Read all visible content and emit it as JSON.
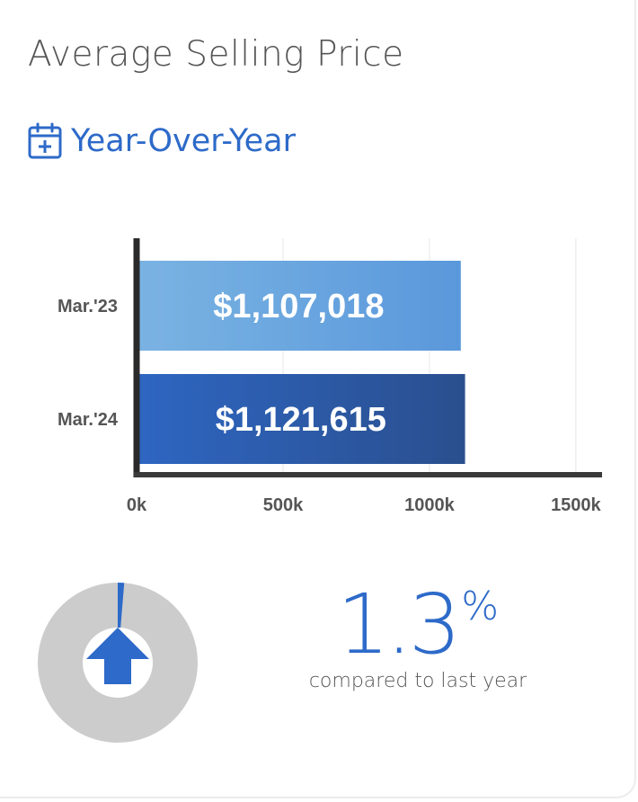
{
  "header": {
    "title": "Average Selling Price",
    "subtitle": "Year-Over-Year",
    "subtitle_icon": "calendar-plus-icon"
  },
  "chart_data": {
    "type": "bar",
    "orientation": "horizontal",
    "categories": [
      "Mar.'23",
      "Mar.'24"
    ],
    "values": [
      1107018,
      1121615
    ],
    "value_labels": [
      "$1,107,018",
      "$1,121,615"
    ],
    "x_ticks": [
      "0k",
      "500k",
      "1000k",
      "1500k"
    ],
    "x_tick_values": [
      0,
      500000,
      1000000,
      1500000
    ],
    "xlim": [
      0,
      1620000
    ],
    "grid": true,
    "legend": "none",
    "bar_colors": [
      [
        "#7ab3e2",
        "#5a98dc"
      ],
      [
        "#2e66c2",
        "#2a4f8e"
      ]
    ]
  },
  "summary": {
    "change_value": "1.3",
    "change_unit": "%",
    "change_fraction": 0.013,
    "direction_icon": "arrow-up-icon",
    "caption": "compared to last year"
  },
  "colors": {
    "accent": "#2d6ac9",
    "donut_track": "#cccccc",
    "text": "#555555"
  }
}
